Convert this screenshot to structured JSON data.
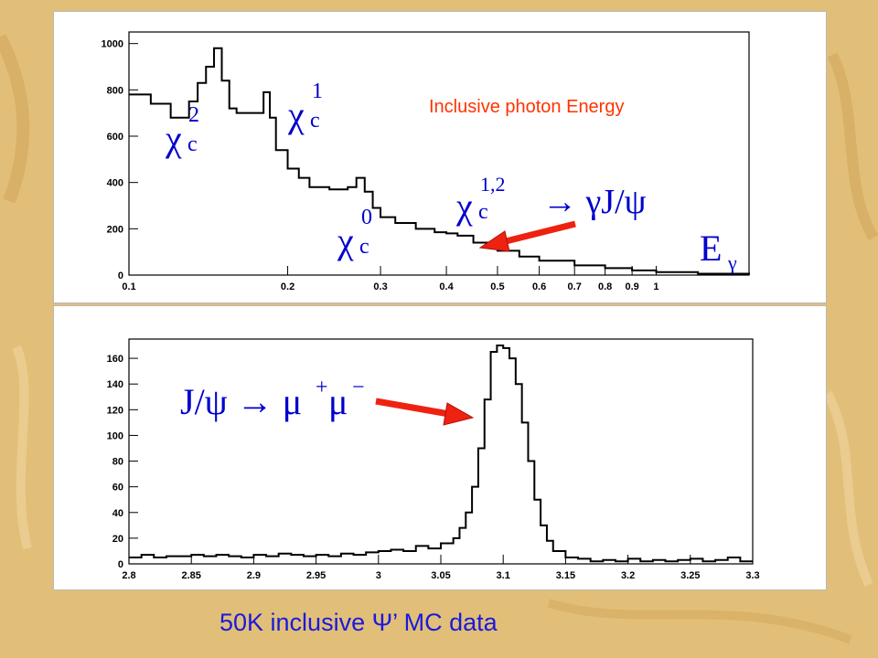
{
  "caption": "50K inclusive Ψ’ MC data",
  "colors": {
    "background": "#e2bf78",
    "panel": "#ffffff",
    "histogram": "#000000",
    "annotation_text": "#0000cc",
    "title_text": "#ff3300",
    "arrow": "#ee2211",
    "caption_text": "#1a1adc"
  },
  "chart_data": [
    {
      "type": "line",
      "subtype": "histogram",
      "title": "Inclusive photon Energy",
      "x_scale": "log",
      "xlim": [
        0.1,
        1.5
      ],
      "ylim": [
        0,
        1050
      ],
      "x_ticks": [
        0.1,
        0.2,
        0.3,
        0.4,
        0.5,
        0.6,
        0.7,
        0.8,
        0.9,
        1
      ],
      "x_tick_labels": [
        "0.1",
        "0.2",
        "0.3",
        "0.4",
        "0.5",
        "0.6",
        "0.7",
        "0.8",
        "0.9",
        "1"
      ],
      "y_ticks": [
        0,
        200,
        400,
        600,
        800,
        1000
      ],
      "y_tick_labels": [
        "0",
        "200",
        "400",
        "600",
        "800",
        "1000"
      ],
      "annotations": {
        "chi_c2": {
          "base": "χ",
          "sub": "c",
          "sup": "2"
        },
        "chi_c1": {
          "base": "χ",
          "sub": "c",
          "sup": "1"
        },
        "chi_c0": {
          "base": "χ",
          "sub": "c",
          "sup": "0"
        },
        "chi_c12": {
          "base": "χ",
          "sub": "c",
          "sup": "1,2",
          "decay": "→ γJ/ψ"
        },
        "e_gamma": {
          "base": "E",
          "sub": "γ"
        }
      },
      "series": [
        {
          "x": [
            0.1,
            0.11,
            0.12,
            0.13,
            0.135,
            0.14,
            0.145,
            0.15,
            0.155,
            0.16,
            0.17,
            0.18,
            0.185,
            0.19,
            0.2,
            0.21,
            0.22,
            0.24,
            0.26,
            0.27,
            0.28,
            0.29,
            0.3,
            0.32,
            0.35,
            0.38,
            0.4,
            0.42,
            0.45,
            0.5,
            0.55,
            0.6,
            0.7,
            0.8,
            0.9,
            1.0,
            1.2,
            1.5
          ],
          "y": [
            780,
            740,
            680,
            750,
            830,
            900,
            980,
            840,
            720,
            700,
            700,
            790,
            680,
            540,
            460,
            420,
            380,
            370,
            380,
            420,
            360,
            290,
            250,
            225,
            200,
            185,
            180,
            170,
            140,
            105,
            80,
            62,
            42,
            30,
            20,
            13,
            6,
            2
          ]
        }
      ]
    },
    {
      "type": "line",
      "subtype": "histogram",
      "xlim": [
        2.8,
        3.3
      ],
      "ylim": [
        0,
        175
      ],
      "x_ticks": [
        2.8,
        2.85,
        2.9,
        2.95,
        3.0,
        3.05,
        3.1,
        3.15,
        3.2,
        3.25,
        3.3
      ],
      "x_tick_labels": [
        "2.8",
        "2.85",
        "2.9",
        "2.95",
        "3",
        "3.05",
        "3.1",
        "3.15",
        "3.2",
        "3.25",
        "3.3"
      ],
      "y_ticks": [
        0,
        20,
        40,
        60,
        80,
        100,
        120,
        140,
        160
      ],
      "y_tick_labels": [
        "0",
        "20",
        "40",
        "60",
        "80",
        "100",
        "120",
        "140",
        "160"
      ],
      "annotations": {
        "jpsi_decay": {
          "text": "J/ψ → μ",
          "sup1": "+",
          "mid": "μ",
          "sup2": "−"
        }
      },
      "series": [
        {
          "x": [
            2.8,
            2.81,
            2.82,
            2.83,
            2.84,
            2.85,
            2.86,
            2.87,
            2.88,
            2.89,
            2.9,
            2.91,
            2.92,
            2.93,
            2.94,
            2.95,
            2.96,
            2.97,
            2.98,
            2.99,
            3.0,
            3.01,
            3.02,
            3.03,
            3.04,
            3.05,
            3.06,
            3.065,
            3.07,
            3.075,
            3.08,
            3.085,
            3.09,
            3.095,
            3.1,
            3.105,
            3.11,
            3.115,
            3.12,
            3.125,
            3.13,
            3.135,
            3.14,
            3.15,
            3.16,
            3.17,
            3.18,
            3.19,
            3.2,
            3.21,
            3.22,
            3.23,
            3.24,
            3.25,
            3.26,
            3.27,
            3.28,
            3.29,
            3.3
          ],
          "y": [
            5,
            7,
            5,
            6,
            6,
            7,
            6,
            7,
            6,
            5,
            7,
            6,
            8,
            7,
            6,
            7,
            6,
            8,
            7,
            9,
            10,
            11,
            10,
            14,
            12,
            16,
            20,
            28,
            40,
            60,
            90,
            128,
            165,
            170,
            168,
            160,
            140,
            110,
            80,
            50,
            30,
            18,
            10,
            5,
            4,
            2,
            3,
            2,
            4,
            2,
            3,
            2,
            3,
            4,
            2,
            3,
            5,
            2,
            2
          ]
        }
      ]
    }
  ]
}
